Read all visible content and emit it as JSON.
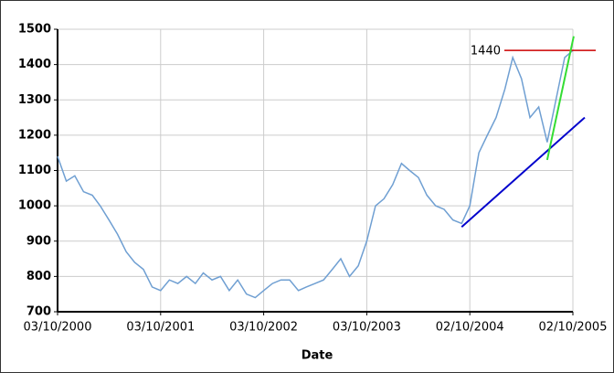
{
  "chart_data": {
    "type": "line",
    "x_label": "Date",
    "x": [
      "03/10/2000",
      "03/11/2000",
      "03/12/2000",
      "03/01/2001",
      "03/02/2001",
      "03/03/2001",
      "03/04/2001",
      "03/05/2001",
      "03/06/2001",
      "03/07/2001",
      "03/08/2001",
      "03/09/2001",
      "03/10/2001",
      "03/11/2001",
      "03/12/2001",
      "03/01/2002",
      "03/02/2002",
      "03/03/2002",
      "03/04/2002",
      "03/05/2002",
      "03/06/2002",
      "03/07/2002",
      "03/08/2002",
      "03/09/2002",
      "03/10/2002",
      "03/11/2002",
      "03/12/2002",
      "03/01/2003",
      "03/02/2003",
      "03/03/2003",
      "03/04/2003",
      "03/05/2003",
      "03/06/2003",
      "03/07/2003",
      "03/08/2003",
      "03/09/2003",
      "03/10/2003",
      "03/11/2003",
      "03/12/2003",
      "03/01/2004",
      "03/02/2004",
      "03/03/2004",
      "03/04/2004",
      "03/05/2004",
      "03/06/2004",
      "03/07/2004",
      "03/08/2004",
      "03/09/2004",
      "02/10/2004",
      "03/11/2004",
      "03/12/2004",
      "03/01/2005",
      "03/02/2005",
      "03/03/2005",
      "03/04/2005",
      "03/05/2005",
      "03/06/2005",
      "03/07/2005",
      "03/08/2005",
      "03/09/2005",
      "02/10/2005"
    ],
    "series": [
      {
        "color": "#6f9fd2",
        "values": [
          1140,
          1070,
          1085,
          1040,
          1030,
          1000,
          960,
          920,
          870,
          840,
          820,
          770,
          760,
          790,
          780,
          800,
          780,
          810,
          790,
          800,
          760,
          790,
          750,
          740,
          760,
          780,
          790,
          790,
          760,
          770,
          780,
          790,
          820,
          850,
          800,
          830,
          900,
          1000,
          1020,
          1060,
          1120,
          1100,
          1080,
          1030,
          1000,
          990,
          960,
          950,
          1000,
          1150,
          1200,
          1250,
          1330,
          1420,
          1360,
          1250,
          1280,
          1180,
          1300,
          1420,
          1440
        ]
      }
    ],
    "xlim": [
      "03/10/2000",
      "02/10/2005"
    ],
    "xticks": [
      "03/10/2000",
      "03/10/2001",
      "03/10/2002",
      "03/10/2003",
      "02/10/2004",
      "02/10/2005"
    ],
    "ylim": [
      700,
      1500
    ],
    "yticks": [
      700,
      800,
      900,
      1000,
      1100,
      1200,
      1300,
      1400,
      1500
    ],
    "grid": true,
    "hline": {
      "value": 1440,
      "label": "1440",
      "color": "#cc0000",
      "label_color": "#000066"
    },
    "trendlines": [
      {
        "color": "#0000cc",
        "x": [
          "03/09/2004",
          "13/11/2005"
        ],
        "values": [
          940,
          1250
        ]
      },
      {
        "color": "#33dd33",
        "x": [
          "03/07/2005",
          "05/10/2005"
        ],
        "values": [
          1130,
          1480
        ]
      }
    ]
  }
}
